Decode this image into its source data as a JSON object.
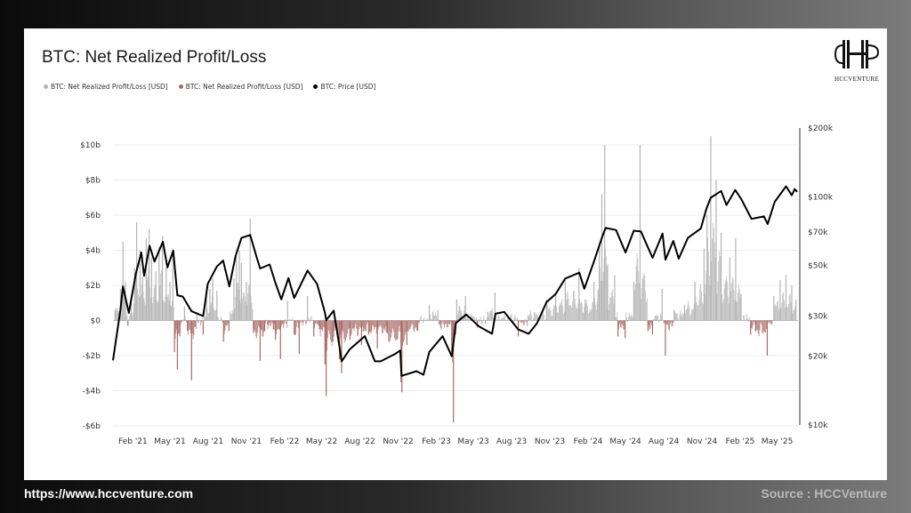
{
  "footer": {
    "website": "https://www.hccventure.com",
    "source": "Source : HCCVenture"
  },
  "logo": {
    "text": "HCCVENTURE"
  },
  "colors": {
    "positive_bars": "#b4b4b4",
    "negative_bars": "#a86a66",
    "price_line": "#000000"
  },
  "chart_data": {
    "type": "bar",
    "title": "BTC: Net Realized Profit/Loss",
    "legend": [
      {
        "label": "BTC: Net Realized Profit/Loss [USD]",
        "color": "#b4b4b4"
      },
      {
        "label": "BTC: Net Realized Profit/Loss [USD]",
        "color": "#a86a66"
      },
      {
        "label": "BTC: Price [USD]",
        "color": "#000000"
      }
    ],
    "legend_placement": "top-left",
    "x_tick_labels": [
      "Feb '21",
      "May '21",
      "Aug '21",
      "Nov '21",
      "Feb '22",
      "May '22",
      "Aug '22",
      "Nov '22",
      "Feb '23",
      "May '23",
      "Aug '23",
      "Nov '23",
      "Feb '24",
      "May '24",
      "Aug '24",
      "Nov '24",
      "Feb '25",
      "May '25"
    ],
    "x_range": [
      "2020-12-15",
      "2025-06-20"
    ],
    "y_left": {
      "tick_labels": [
        "$10b",
        "$8b",
        "$6b",
        "$4b",
        "$2b",
        "$0",
        "-$2b",
        "-$4b",
        "-$6b"
      ],
      "tick_values": [
        10,
        8,
        6,
        4,
        2,
        0,
        -2,
        -4,
        -6
      ],
      "unit": "billion USD",
      "ylim": [
        -6,
        10
      ]
    },
    "y_right": {
      "scale": "log",
      "tick_labels": [
        "$200k",
        "$100k",
        "$70k",
        "$50k",
        "$30k",
        "$20k",
        "$10k"
      ],
      "tick_values": [
        200000,
        100000,
        70000,
        50000,
        30000,
        20000,
        10000
      ],
      "ylim": [
        10000,
        200000
      ]
    },
    "grid": "horizontal",
    "series": [
      {
        "name": "BTC: Net Realized Profit/Loss [USD]",
        "axis": "left",
        "note": "daily bars, approximate values in billions USD",
        "points": [
          [
            "2020-12-20",
            0.6
          ],
          [
            "2021-01-02",
            1.8
          ],
          [
            "2021-01-08",
            4.5
          ],
          [
            "2021-01-14",
            2.2
          ],
          [
            "2021-01-20",
            -0.3
          ],
          [
            "2021-01-28",
            1.2
          ],
          [
            "2021-02-05",
            3.0
          ],
          [
            "2021-02-10",
            5.6
          ],
          [
            "2021-02-18",
            4.0
          ],
          [
            "2021-02-24",
            2.5
          ],
          [
            "2021-03-05",
            4.7
          ],
          [
            "2021-03-12",
            5.2
          ],
          [
            "2021-03-18",
            3.6
          ],
          [
            "2021-03-28",
            2.8
          ],
          [
            "2021-04-05",
            4.2
          ],
          [
            "2021-04-13",
            4.8
          ],
          [
            "2021-04-22",
            3.0
          ],
          [
            "2021-05-01",
            2.2
          ],
          [
            "2021-05-08",
            4.1
          ],
          [
            "2021-05-12",
            -1.8
          ],
          [
            "2021-05-19",
            -2.8
          ],
          [
            "2021-05-25",
            -0.9
          ],
          [
            "2021-06-05",
            0.8
          ],
          [
            "2021-06-12",
            -0.6
          ],
          [
            "2021-06-22",
            -3.4
          ],
          [
            "2021-07-05",
            0.5
          ],
          [
            "2021-07-20",
            -0.8
          ],
          [
            "2021-07-28",
            1.6
          ],
          [
            "2021-08-05",
            1.8
          ],
          [
            "2021-08-12",
            2.4
          ],
          [
            "2021-08-22",
            1.7
          ],
          [
            "2021-09-07",
            -1.2
          ],
          [
            "2021-09-20",
            -0.6
          ],
          [
            "2021-10-02",
            2.4
          ],
          [
            "2021-10-08",
            3.6
          ],
          [
            "2021-10-15",
            4.0
          ],
          [
            "2021-10-20",
            3.3
          ],
          [
            "2021-11-01",
            2.2
          ],
          [
            "2021-11-10",
            5.8
          ],
          [
            "2021-11-18",
            -0.7
          ],
          [
            "2021-12-04",
            -2.3
          ],
          [
            "2021-12-15",
            -0.6
          ],
          [
            "2022-01-05",
            -0.5
          ],
          [
            "2022-01-10",
            -1.1
          ],
          [
            "2022-01-22",
            -2.2
          ],
          [
            "2022-02-08",
            1.1
          ],
          [
            "2022-02-24",
            -0.8
          ],
          [
            "2022-03-08",
            -1.9
          ],
          [
            "2022-03-28",
            1.4
          ],
          [
            "2022-04-12",
            -0.9
          ],
          [
            "2022-04-26",
            -0.5
          ],
          [
            "2022-05-09",
            -2.5
          ],
          [
            "2022-05-12",
            -4.3
          ],
          [
            "2022-05-28",
            -1.2
          ],
          [
            "2022-06-13",
            -2.2
          ],
          [
            "2022-06-18",
            -3.0
          ],
          [
            "2022-07-08",
            -1.1
          ],
          [
            "2022-08-05",
            -1.4
          ],
          [
            "2022-08-22",
            -0.8
          ],
          [
            "2022-09-12",
            -1.6
          ],
          [
            "2022-10-05",
            -0.7
          ],
          [
            "2022-11-08",
            -3.5
          ],
          [
            "2022-11-10",
            -4.1
          ],
          [
            "2022-11-22",
            -1.4
          ],
          [
            "2022-12-18",
            -0.6
          ],
          [
            "2023-01-15",
            0.9
          ],
          [
            "2023-02-05",
            0.6
          ],
          [
            "2023-03-10",
            -1.8
          ],
          [
            "2023-03-14",
            -5.8
          ],
          [
            "2023-03-22",
            1.2
          ],
          [
            "2023-04-12",
            1.4
          ],
          [
            "2023-05-10",
            -0.4
          ],
          [
            "2023-06-05",
            0.5
          ],
          [
            "2023-06-22",
            1.6
          ],
          [
            "2023-08-17",
            -0.9
          ],
          [
            "2023-09-10",
            0.3
          ],
          [
            "2023-10-24",
            1.2
          ],
          [
            "2023-11-15",
            1.6
          ],
          [
            "2023-12-08",
            2.3
          ],
          [
            "2024-01-10",
            3.0
          ],
          [
            "2024-01-25",
            1.2
          ],
          [
            "2024-02-15",
            2.2
          ],
          [
            "2024-02-28",
            4.2
          ],
          [
            "2024-03-05",
            7.2
          ],
          [
            "2024-03-12",
            10.0
          ],
          [
            "2024-03-19",
            3.2
          ],
          [
            "2024-04-05",
            2.6
          ],
          [
            "2024-04-13",
            -0.9
          ],
          [
            "2024-04-30",
            -1.0
          ],
          [
            "2024-05-21",
            2.2
          ],
          [
            "2024-06-05",
            10.0
          ],
          [
            "2024-06-24",
            -0.6
          ],
          [
            "2024-07-05",
            -0.8
          ],
          [
            "2024-07-28",
            1.8
          ],
          [
            "2024-08-05",
            -2.0
          ],
          [
            "2024-08-26",
            0.6
          ],
          [
            "2024-09-20",
            0.9
          ],
          [
            "2024-10-15",
            2.2
          ],
          [
            "2024-11-06",
            4.1
          ],
          [
            "2024-11-13",
            6.0
          ],
          [
            "2024-11-22",
            10.5
          ],
          [
            "2024-12-05",
            8.0
          ],
          [
            "2024-12-17",
            5.0
          ],
          [
            "2025-01-07",
            3.6
          ],
          [
            "2025-01-21",
            4.7
          ],
          [
            "2025-02-03",
            1.5
          ],
          [
            "2025-02-26",
            -0.8
          ],
          [
            "2025-03-10",
            -0.6
          ],
          [
            "2025-04-07",
            -2.0
          ],
          [
            "2025-04-23",
            1.4
          ],
          [
            "2025-05-08",
            2.3
          ],
          [
            "2025-05-22",
            2.6
          ],
          [
            "2025-06-05",
            2.0
          ],
          [
            "2025-06-15",
            1.2
          ]
        ]
      },
      {
        "name": "BTC: Price [USD]",
        "axis": "right",
        "type": "line",
        "points": [
          [
            "2020-12-15",
            19200
          ],
          [
            "2021-01-02",
            32000
          ],
          [
            "2021-01-08",
            40500
          ],
          [
            "2021-01-22",
            31000
          ],
          [
            "2021-02-08",
            46000
          ],
          [
            "2021-02-21",
            57000
          ],
          [
            "2021-02-28",
            45000
          ],
          [
            "2021-03-13",
            61000
          ],
          [
            "2021-03-25",
            52000
          ],
          [
            "2021-04-14",
            63500
          ],
          [
            "2021-04-25",
            49000
          ],
          [
            "2021-05-09",
            58000
          ],
          [
            "2021-05-19",
            37000
          ],
          [
            "2021-06-01",
            36500
          ],
          [
            "2021-06-22",
            31500
          ],
          [
            "2021-07-20",
            30000
          ],
          [
            "2021-07-31",
            41500
          ],
          [
            "2021-08-22",
            49500
          ],
          [
            "2021-09-06",
            52500
          ],
          [
            "2021-09-21",
            40500
          ],
          [
            "2021-10-06",
            55000
          ],
          [
            "2021-10-20",
            66000
          ],
          [
            "2021-11-10",
            68000
          ],
          [
            "2021-11-26",
            54000
          ],
          [
            "2021-12-04",
            48500
          ],
          [
            "2021-12-27",
            50500
          ],
          [
            "2022-01-10",
            41800
          ],
          [
            "2022-01-24",
            35500
          ],
          [
            "2022-02-10",
            44000
          ],
          [
            "2022-02-24",
            36000
          ],
          [
            "2022-03-28",
            47500
          ],
          [
            "2022-04-20",
            41500
          ],
          [
            "2022-05-09",
            31000
          ],
          [
            "2022-05-12",
            28800
          ],
          [
            "2022-05-30",
            31700
          ],
          [
            "2022-06-13",
            22000
          ],
          [
            "2022-06-18",
            19000
          ],
          [
            "2022-07-08",
            21500
          ],
          [
            "2022-08-13",
            24500
          ],
          [
            "2022-09-06",
            19000
          ],
          [
            "2022-09-20",
            19000
          ],
          [
            "2022-10-25",
            20500
          ],
          [
            "2022-11-06",
            21200
          ],
          [
            "2022-11-09",
            16400
          ],
          [
            "2022-12-15",
            17200
          ],
          [
            "2023-01-01",
            16600
          ],
          [
            "2023-01-15",
            20900
          ],
          [
            "2023-02-16",
            24500
          ],
          [
            "2023-03-10",
            20000
          ],
          [
            "2023-03-20",
            28000
          ],
          [
            "2023-04-14",
            30500
          ],
          [
            "2023-05-15",
            27000
          ],
          [
            "2023-06-15",
            25100
          ],
          [
            "2023-06-23",
            30700
          ],
          [
            "2023-07-14",
            31300
          ],
          [
            "2023-08-17",
            26200
          ],
          [
            "2023-09-11",
            25100
          ],
          [
            "2023-10-01",
            27900
          ],
          [
            "2023-10-24",
            34500
          ],
          [
            "2023-11-15",
            37500
          ],
          [
            "2023-12-08",
            43800
          ],
          [
            "2024-01-11",
            46500
          ],
          [
            "2024-01-23",
            39500
          ],
          [
            "2024-02-15",
            52000
          ],
          [
            "2024-03-05",
            66000
          ],
          [
            "2024-03-14",
            73000
          ],
          [
            "2024-04-08",
            71500
          ],
          [
            "2024-05-01",
            57000
          ],
          [
            "2024-05-21",
            71000
          ],
          [
            "2024-06-07",
            70500
          ],
          [
            "2024-07-05",
            54000
          ],
          [
            "2024-07-29",
            69000
          ],
          [
            "2024-08-05",
            53000
          ],
          [
            "2024-08-24",
            64000
          ],
          [
            "2024-09-06",
            53500
          ],
          [
            "2024-09-28",
            66000
          ],
          [
            "2024-10-29",
            72500
          ],
          [
            "2024-11-12",
            89000
          ],
          [
            "2024-11-22",
            99000
          ],
          [
            "2024-12-17",
            106000
          ],
          [
            "2024-12-30",
            92000
          ],
          [
            "2025-01-20",
            107000
          ],
          [
            "2025-02-03",
            98000
          ],
          [
            "2025-02-28",
            80000
          ],
          [
            "2025-03-30",
            82000
          ],
          [
            "2025-04-08",
            76000
          ],
          [
            "2025-04-25",
            95000
          ],
          [
            "2025-05-22",
            111000
          ],
          [
            "2025-06-05",
            101500
          ],
          [
            "2025-06-12",
            108000
          ],
          [
            "2025-06-18",
            105000
          ]
        ]
      }
    ],
    "negative_series_color_note": "bars below zero drawn in #a86a66"
  }
}
